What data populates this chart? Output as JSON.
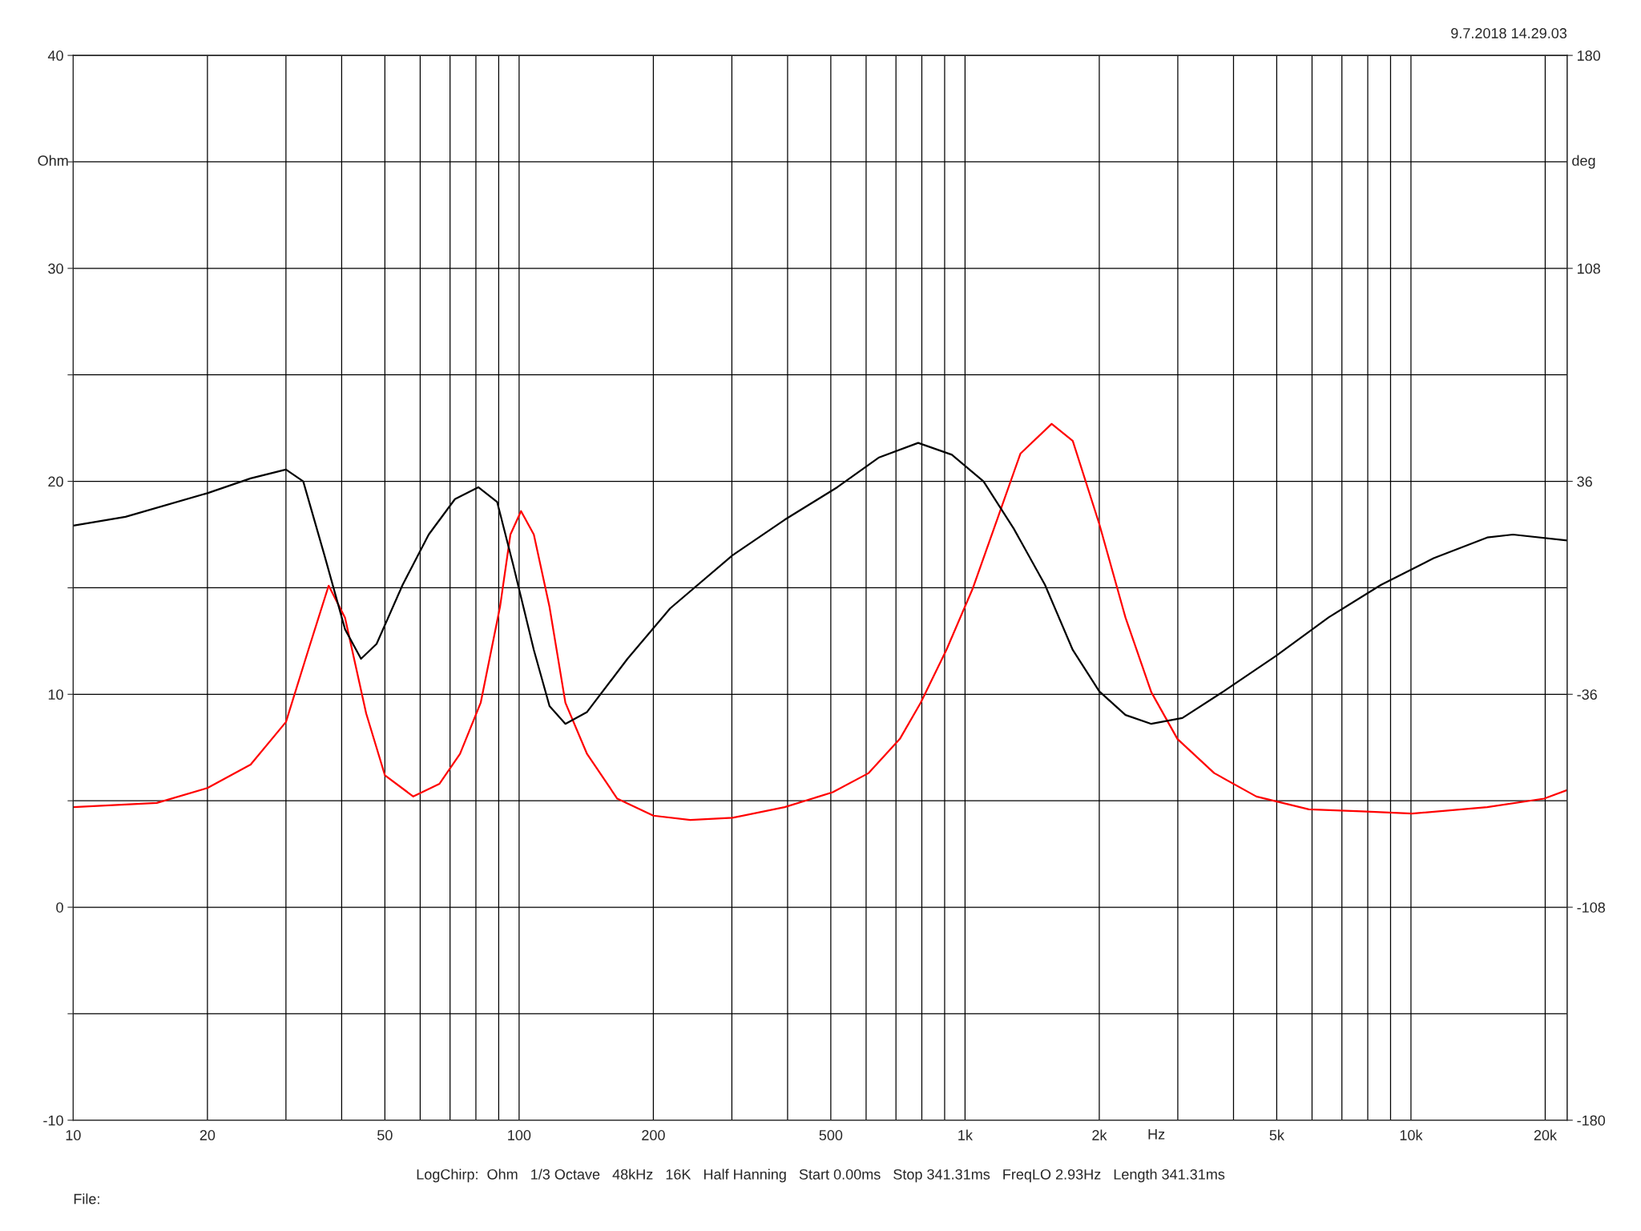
{
  "chart_data": {
    "type": "line",
    "xlabel": "Hz",
    "ylabel": "Ohm",
    "y2label": "deg",
    "annotations": [
      "9.7.2018 14.29.03",
      "LogChirp:  Ohm   1/3 Octave   48kHz   16K   Half Hanning   Start 0.00ms   Stop 341.31ms   FreqLO 2.93Hz   Length 341.31ms",
      "File:"
    ],
    "log": "x",
    "grid": true,
    "legend": false,
    "marker": "none",
    "line_style": "solid",
    "xlim": [
      10,
      22400
    ],
    "xticks": [
      10,
      20,
      {
        "value": 30,
        "label": null
      },
      {
        "value": 40,
        "label": null
      },
      50,
      {
        "value": 60,
        "label": null
      },
      {
        "value": 70,
        "label": null
      },
      {
        "value": 80,
        "label": null
      },
      {
        "value": 90,
        "label": null
      },
      100,
      200,
      {
        "value": 300,
        "label": null
      },
      {
        "value": 400,
        "label": null
      },
      500,
      {
        "value": 600,
        "label": null
      },
      {
        "value": 700,
        "label": null
      },
      {
        "value": 800,
        "label": null
      },
      {
        "value": 900,
        "label": null
      },
      {
        "value": 1000,
        "label": "1k"
      },
      {
        "value": 2000,
        "label": "2k"
      },
      {
        "value": 3000,
        "label": null
      },
      {
        "value": 4000,
        "label": null
      },
      {
        "value": 5000,
        "label": "5k"
      },
      {
        "value": 6000,
        "label": null
      },
      {
        "value": 7000,
        "label": null
      },
      {
        "value": 8000,
        "label": null
      },
      {
        "value": 9000,
        "label": null
      },
      {
        "value": 10000,
        "label": "10k"
      },
      {
        "value": 20000,
        "label": "20k"
      }
    ],
    "ylim": [
      -10,
      40
    ],
    "yticks": [
      -10,
      {
        "value": -5,
        "label": null
      },
      0,
      {
        "value": 5,
        "label": null
      },
      10,
      {
        "value": 15,
        "label": null
      },
      20,
      {
        "value": 25,
        "label": null
      },
      30,
      {
        "value": 35,
        "label": null
      },
      40
    ],
    "y2lim": [
      -180,
      180
    ],
    "y2ticks": [
      -180,
      -108,
      -36,
      36,
      108,
      180
    ],
    "series": [
      {
        "color": "#ff0000",
        "x": [
          10,
          15.4,
          20,
          25,
          30,
          33.7,
          37.4,
          40.7,
          45.4,
          50,
          57.9,
          66.3,
          73.7,
          82,
          90.6,
          95.6,
          101,
          107.9,
          117,
          127,
          142,
          166,
          200,
          242,
          301,
          394,
          505,
          608,
          714,
          795,
          909,
          1042,
          1194,
          1331,
          1564,
          1744,
          2000,
          2290,
          2616,
          2995,
          3620,
          4502,
          5903,
          7751,
          10060,
          14820,
          19880,
          22400
        ],
        "values": [
          4.7,
          4.9,
          5.6,
          6.7,
          8.7,
          12.1,
          15.1,
          13.6,
          9.1,
          6.2,
          5.2,
          5.8,
          7.2,
          9.6,
          14.1,
          17.5,
          18.6,
          17.5,
          14.1,
          9.6,
          7.2,
          5.1,
          4.3,
          4.1,
          4.2,
          4.7,
          5.4,
          6.3,
          7.9,
          9.6,
          12.1,
          15.0,
          18.5,
          21.3,
          22.7,
          21.9,
          18.0,
          13.6,
          10.1,
          7.9,
          6.3,
          5.2,
          4.6,
          4.5,
          4.4,
          4.7,
          5.1,
          5.5
        ]
      },
      {
        "color": "#000000",
        "axis": "y2",
        "x": [
          10,
          13.1,
          20,
          25,
          30,
          32.8,
          36.6,
          40.7,
          44.2,
          47.9,
          54.8,
          62.7,
          71.8,
          81,
          89.3,
          96.9,
          107.9,
          117,
          127,
          142,
          175,
          218,
          301,
          394,
          517,
          640,
          785,
          934,
          1100,
          1286,
          1511,
          1744,
          2000,
          2290,
          2616,
          3072,
          3801,
          4982,
          6536,
          8569,
          11240,
          14820,
          16930,
          22400
        ],
        "values": [
          21,
          24,
          32,
          37,
          40,
          36,
          11,
          -14,
          -24,
          -19,
          1,
          18,
          30,
          34,
          29,
          8,
          -21,
          -40,
          -46,
          -42,
          -24,
          -7,
          11,
          23,
          34,
          44,
          49,
          45,
          36,
          20,
          1,
          -21,
          -35,
          -43,
          -46,
          -44,
          -35,
          -23,
          -10,
          1,
          10,
          17,
          18,
          16
        ]
      }
    ]
  }
}
